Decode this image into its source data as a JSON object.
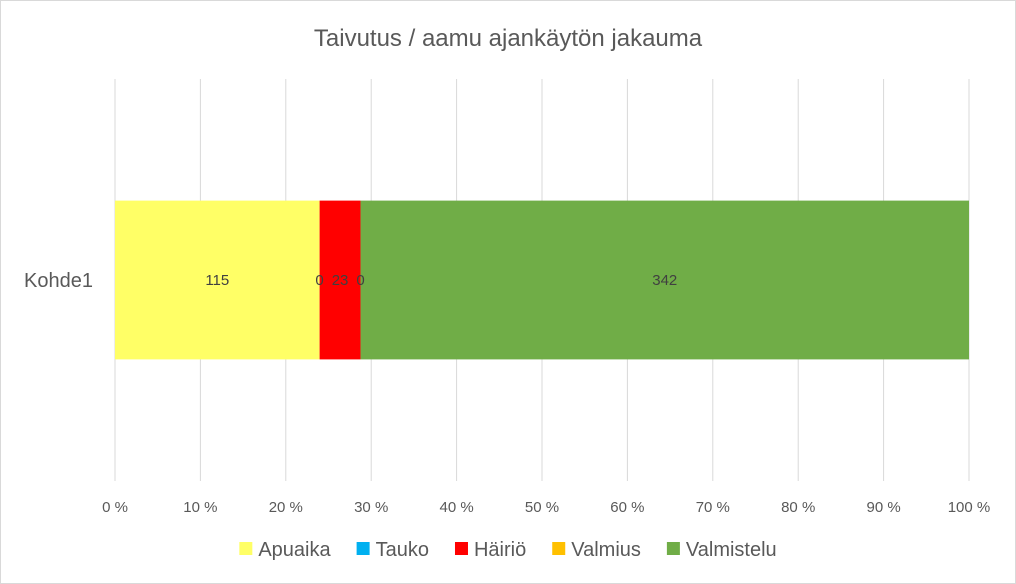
{
  "chart_data": {
    "type": "bar",
    "orientation": "horizontal",
    "stacking": "percent",
    "title": "Taivutus / aamu ajankäytön jakauma",
    "categories": [
      "Kohde1"
    ],
    "series": [
      {
        "name": "Apuaika",
        "values": [
          115
        ],
        "color": "#FFFF66"
      },
      {
        "name": "Tauko",
        "values": [
          0
        ],
        "color": "#00B0F0"
      },
      {
        "name": "Häiriö",
        "values": [
          23
        ],
        "color": "#FF0000"
      },
      {
        "name": "Valmius",
        "values": [
          0
        ],
        "color": "#FFC000"
      },
      {
        "name": "Valmistelu",
        "values": [
          342
        ],
        "color": "#70AD47"
      }
    ],
    "xlim": [
      0,
      100
    ],
    "xticks": [
      "0 %",
      "10 %",
      "20 %",
      "30 %",
      "40 %",
      "50 %",
      "60 %",
      "70 %",
      "80 %",
      "90 %",
      "100 %"
    ],
    "grid": true,
    "legend_position": "bottom"
  }
}
